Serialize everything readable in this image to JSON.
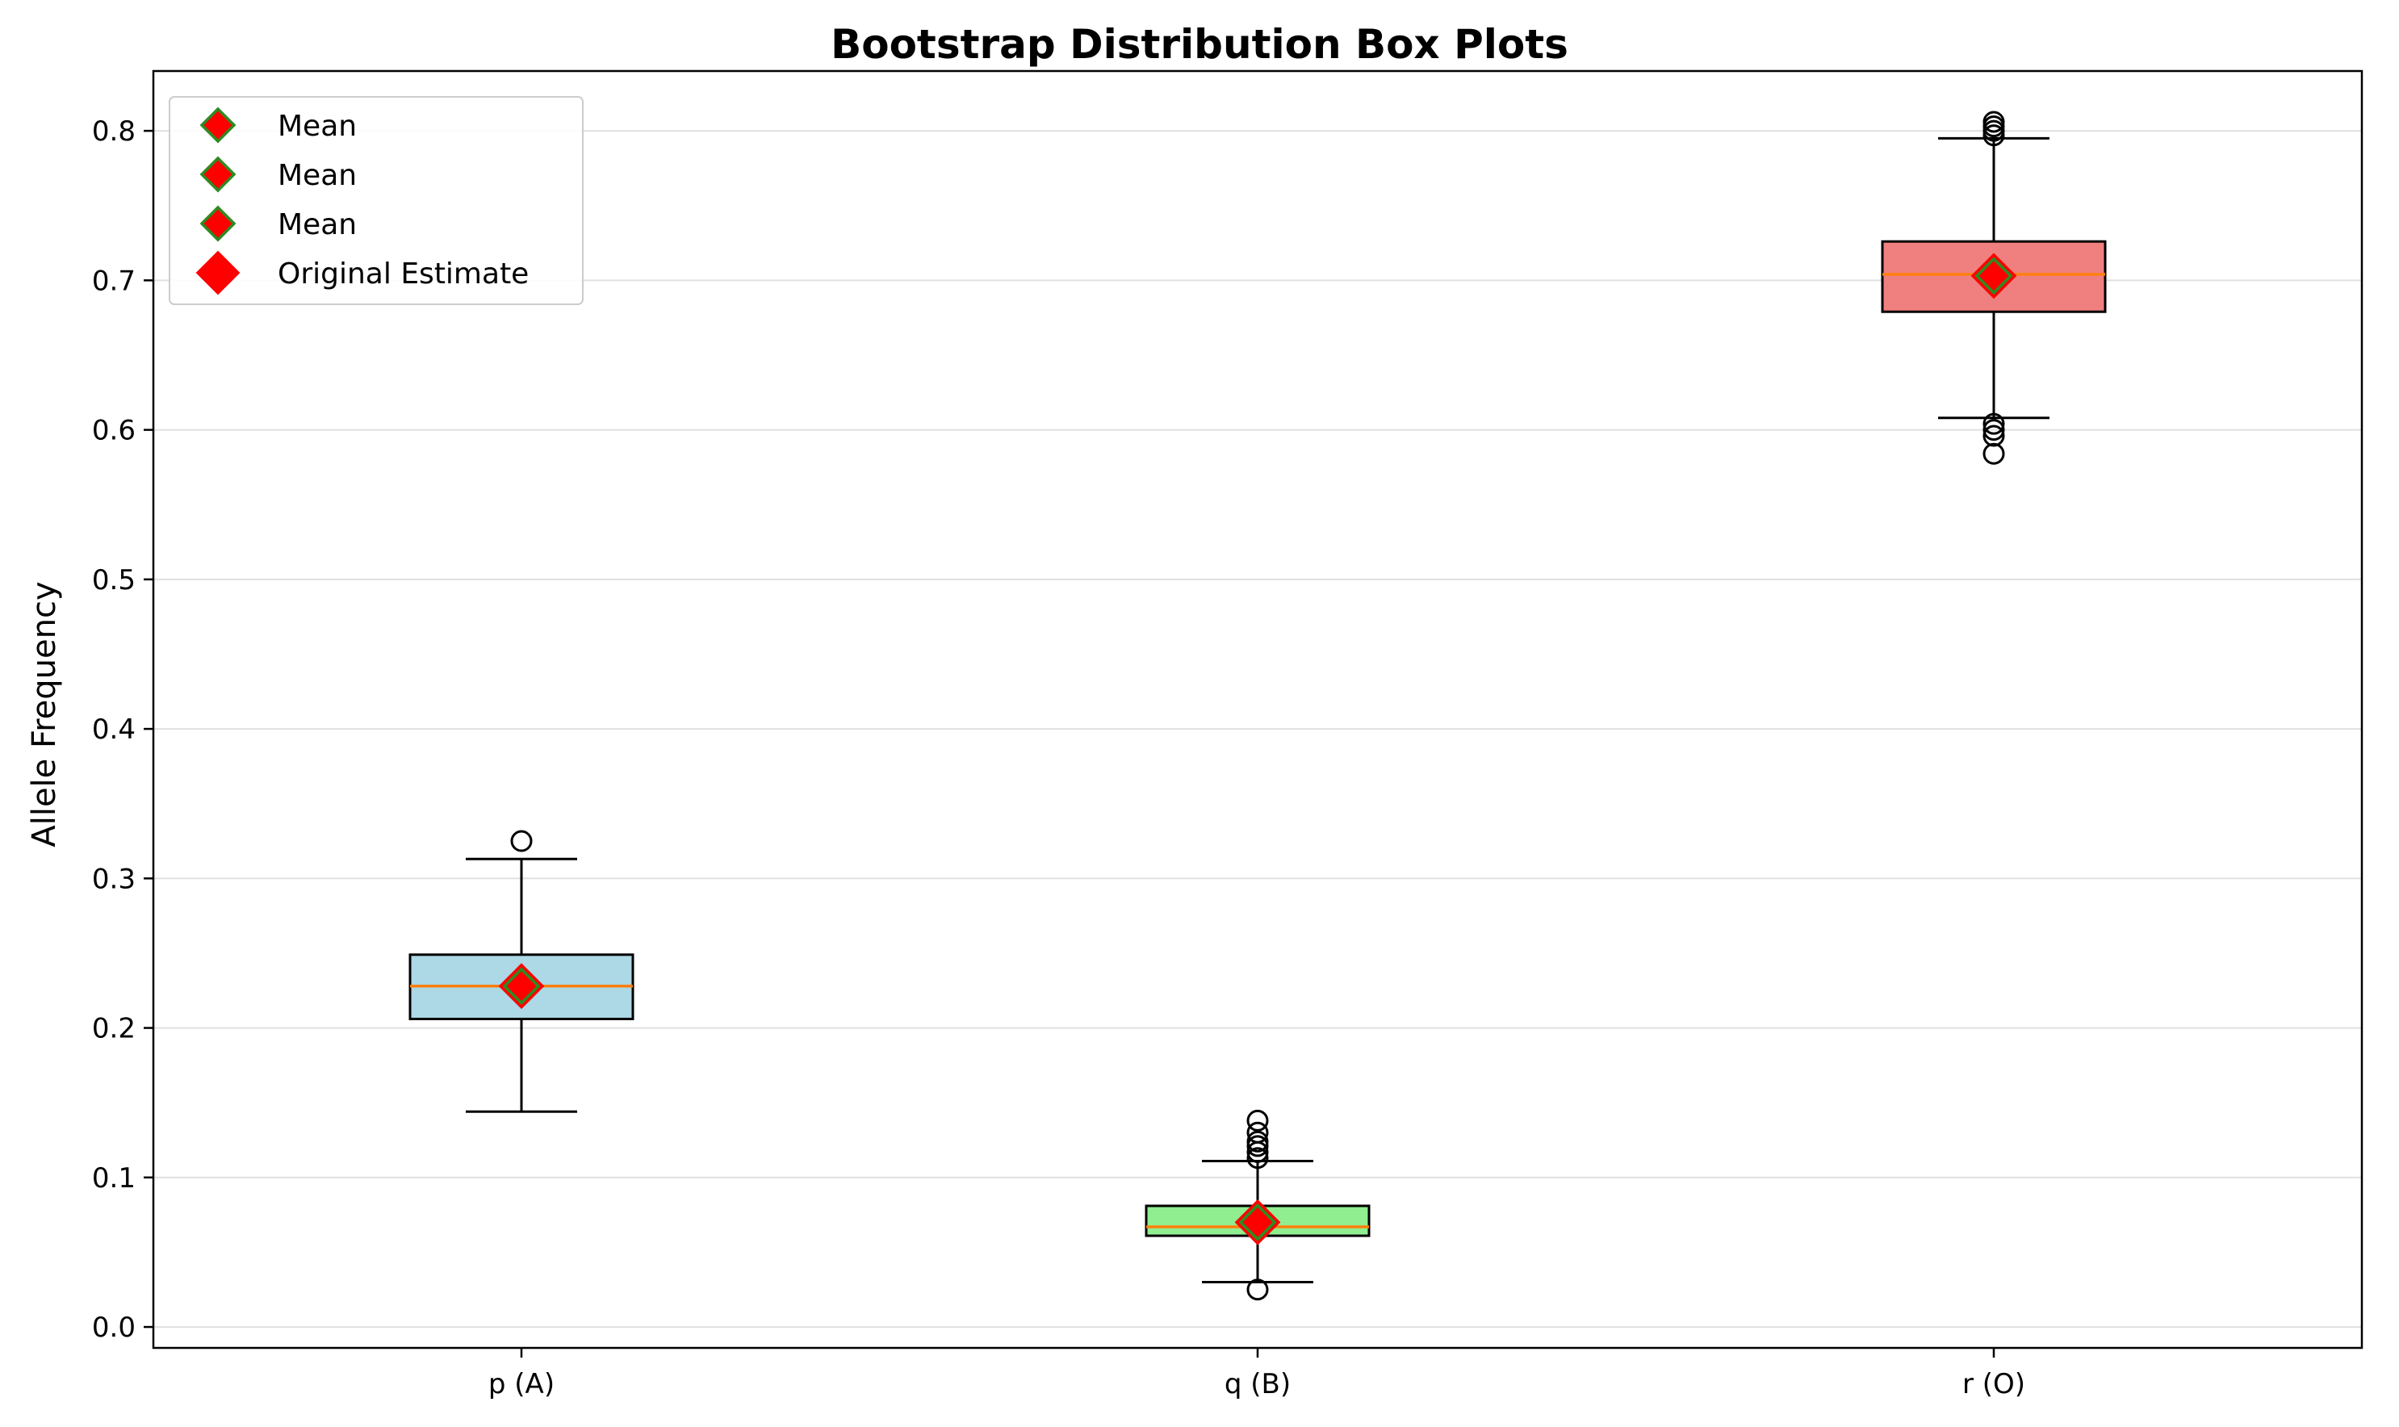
{
  "chart_data": {
    "type": "boxplot",
    "title": "Bootstrap Distribution Box Plots",
    "xlabel": "",
    "ylabel": "Allele Frequency",
    "categories": [
      "p (A)",
      "q (B)",
      "r (O)"
    ],
    "ylim": [
      -0.014,
      0.84
    ],
    "yticks": [
      0.0,
      0.1,
      0.2,
      0.3,
      0.4,
      0.5,
      0.6,
      0.7,
      0.8
    ],
    "ytick_labels": [
      "0.0",
      "0.1",
      "0.2",
      "0.3",
      "0.4",
      "0.5",
      "0.6",
      "0.7",
      "0.8"
    ],
    "grid": "y",
    "legend_position": "top-left",
    "legend": [
      {
        "label": "Mean",
        "marker": "diamond",
        "face": "#ff0000",
        "edge": "#2e8b22"
      },
      {
        "label": "Mean",
        "marker": "diamond",
        "face": "#ff0000",
        "edge": "#2e8b22"
      },
      {
        "label": "Mean",
        "marker": "diamond",
        "face": "#ff0000",
        "edge": "#2e8b22"
      },
      {
        "label": "Original Estimate",
        "marker": "diamond",
        "face": "#ff0000",
        "edge": "#ff0000"
      }
    ],
    "boxes": [
      {
        "label": "p (A)",
        "color": "#add8e6",
        "q1": 0.206,
        "median": 0.228,
        "q3": 0.249,
        "whisker_low": 0.144,
        "whisker_high": 0.313,
        "mean": 0.228,
        "original_estimate": 0.228,
        "outliers": [
          0.325
        ]
      },
      {
        "label": "q (B)",
        "color": "#90ee90",
        "q1": 0.061,
        "median": 0.067,
        "q3": 0.081,
        "whisker_low": 0.03,
        "whisker_high": 0.111,
        "mean": 0.07,
        "original_estimate": 0.07,
        "outliers": [
          0.025,
          0.113,
          0.117,
          0.121,
          0.124,
          0.13,
          0.138
        ]
      },
      {
        "label": "r (O)",
        "color": "#f08080",
        "q1": 0.679,
        "median": 0.704,
        "q3": 0.726,
        "whisker_low": 0.608,
        "whisker_high": 0.795,
        "mean": 0.703,
        "original_estimate": 0.703,
        "outliers": [
          0.584,
          0.596,
          0.6,
          0.604,
          0.797,
          0.8,
          0.803,
          0.806
        ]
      }
    ],
    "colors": {
      "median": "#ff7f0e",
      "mean_face": "#ff0000",
      "mean_edge": "#2e8b22",
      "estimate": "#ff0000",
      "grid": "#e0e0e0"
    }
  }
}
